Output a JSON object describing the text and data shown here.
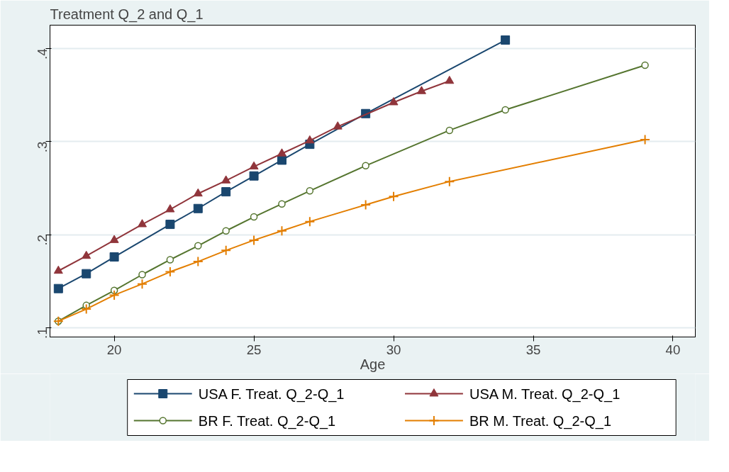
{
  "chart_data": {
    "type": "line",
    "title": "Treatment Q_2 and Q_1",
    "xlabel": "Age",
    "xlim": [
      17.7,
      40.8
    ],
    "xticks": [
      20,
      25,
      30,
      35,
      40
    ],
    "ylim": [
      0.09,
      0.425
    ],
    "yticks": [
      {
        "value": 0.1,
        "label": ".1"
      },
      {
        "value": 0.2,
        "label": ".2"
      },
      {
        "value": 0.3,
        "label": ".3"
      },
      {
        "value": 0.4,
        "label": ".4"
      }
    ],
    "grid": "y",
    "legend": "bottom",
    "series": [
      {
        "name": "USA F. Treat. Q_2-Q_1",
        "color": "#1a476f",
        "marker": "square",
        "x": [
          18,
          19,
          20,
          22,
          23,
          24,
          25,
          26,
          27,
          29,
          34
        ],
        "values": [
          0.142,
          0.158,
          0.176,
          0.211,
          0.228,
          0.246,
          0.263,
          0.28,
          0.297,
          0.33,
          0.409
        ]
      },
      {
        "name": "USA M. Treat. Q_2-Q_1",
        "color": "#90353b",
        "marker": "triangle",
        "x": [
          18,
          19,
          20,
          21,
          22,
          23,
          24,
          25,
          26,
          27,
          28,
          30,
          31,
          32
        ],
        "values": [
          0.161,
          0.177,
          0.194,
          0.211,
          0.227,
          0.244,
          0.258,
          0.273,
          0.287,
          0.301,
          0.316,
          0.342,
          0.354,
          0.365
        ]
      },
      {
        "name": "BR F. Treat. Q_2-Q_1",
        "color": "#55752f",
        "marker": "circle",
        "x": [
          18,
          19,
          20,
          21,
          22,
          23,
          24,
          25,
          26,
          27,
          29,
          32,
          34,
          39
        ],
        "values": [
          0.107,
          0.124,
          0.14,
          0.157,
          0.173,
          0.188,
          0.204,
          0.219,
          0.233,
          0.247,
          0.274,
          0.312,
          0.334,
          0.382
        ]
      },
      {
        "name": "BR M. Treat. Q_2-Q_1",
        "color": "#e37e00",
        "marker": "cross",
        "x": [
          18,
          19,
          20,
          21,
          22,
          23,
          24,
          25,
          26,
          27,
          29,
          30,
          32,
          39
        ],
        "values": [
          0.107,
          0.12,
          0.135,
          0.147,
          0.16,
          0.171,
          0.183,
          0.194,
          0.204,
          0.214,
          0.232,
          0.241,
          0.257,
          0.302
        ]
      }
    ]
  }
}
